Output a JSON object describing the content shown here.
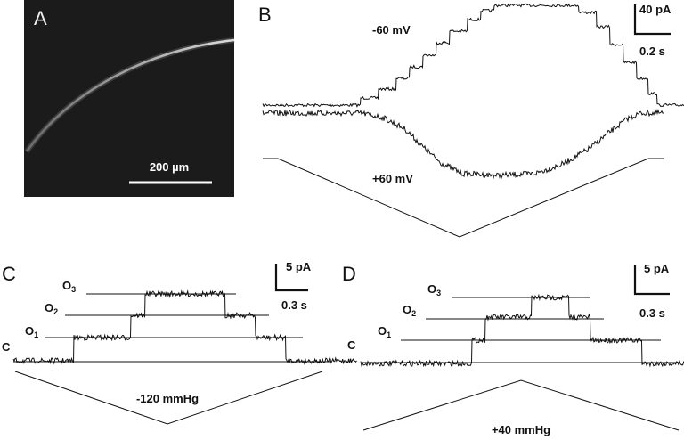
{
  "panels": {
    "A": {
      "label": "A",
      "scale_bar": "200 µm"
    },
    "B": {
      "label": "B",
      "trace_top": "-60 mV",
      "trace_bottom": "+60 mV",
      "scale_y": "40 pA",
      "scale_x": "0.2 s"
    },
    "C": {
      "label": "C",
      "levels": {
        "closed": "C",
        "o1": "O",
        "o1_sub": "1",
        "o2": "O",
        "o2_sub": "2",
        "o3": "O",
        "o3_sub": "3"
      },
      "scale_y": "5 pA",
      "scale_x": "0.3 s",
      "pressure": "-120 mmHg"
    },
    "D": {
      "label": "D",
      "levels": {
        "closed": "C",
        "o1": "O",
        "o1_sub": "1",
        "o2": "O",
        "o2_sub": "2",
        "o3": "O",
        "o3_sub": "3"
      },
      "scale_y": "5 pA",
      "scale_x": "0.3 s",
      "pressure": "+40 mmHg"
    }
  }
}
